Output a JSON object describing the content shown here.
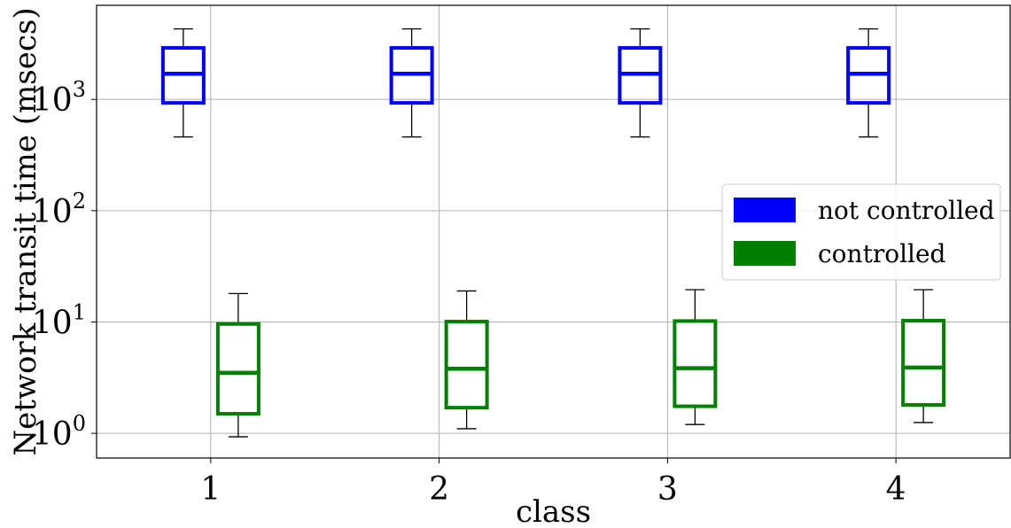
{
  "chart_data": {
    "type": "box",
    "xlabel": "class",
    "ylabel": "Network  transit  time  (msecs)",
    "yscale": "log",
    "ylim": [
      0.6,
      7000
    ],
    "xlim": [
      0.5,
      4.5
    ],
    "grid": true,
    "categories": [
      "1",
      "2",
      "3",
      "4"
    ],
    "y_ticks": [
      {
        "base": "10",
        "exp": "0",
        "value": 1
      },
      {
        "base": "10",
        "exp": "1",
        "value": 10
      },
      {
        "base": "10",
        "exp": "2",
        "value": 100
      },
      {
        "base": "10",
        "exp": "3",
        "value": 1000
      }
    ],
    "legend": {
      "position": "center-right",
      "entries": [
        {
          "label": "not controlled",
          "color": "#0000ff"
        },
        {
          "label": "controlled",
          "color": "#008000"
        }
      ]
    },
    "series": [
      {
        "name": "not controlled",
        "color": "#0000ff",
        "boxes": [
          {
            "category": "1",
            "whisker_low": 460,
            "q1": 930,
            "median": 1700,
            "q3": 2900,
            "whisker_high": 4300
          },
          {
            "category": "2",
            "whisker_low": 460,
            "q1": 930,
            "median": 1700,
            "q3": 2900,
            "whisker_high": 4300
          },
          {
            "category": "3",
            "whisker_low": 460,
            "q1": 930,
            "median": 1700,
            "q3": 2900,
            "whisker_high": 4300
          },
          {
            "category": "4",
            "whisker_low": 460,
            "q1": 930,
            "median": 1700,
            "q3": 2900,
            "whisker_high": 4300
          }
        ]
      },
      {
        "name": "controlled",
        "color": "#008000",
        "boxes": [
          {
            "category": "1",
            "whisker_low": 0.93,
            "q1": 1.5,
            "median": 3.5,
            "q3": 9.6,
            "whisker_high": 18
          },
          {
            "category": "2",
            "whisker_low": 1.1,
            "q1": 1.7,
            "median": 3.8,
            "q3": 10.1,
            "whisker_high": 19
          },
          {
            "category": "3",
            "whisker_low": 1.2,
            "q1": 1.75,
            "median": 3.85,
            "q3": 10.2,
            "whisker_high": 19.5
          },
          {
            "category": "4",
            "whisker_low": 1.25,
            "q1": 1.8,
            "median": 3.9,
            "q3": 10.3,
            "whisker_high": 19.5
          }
        ]
      }
    ]
  }
}
